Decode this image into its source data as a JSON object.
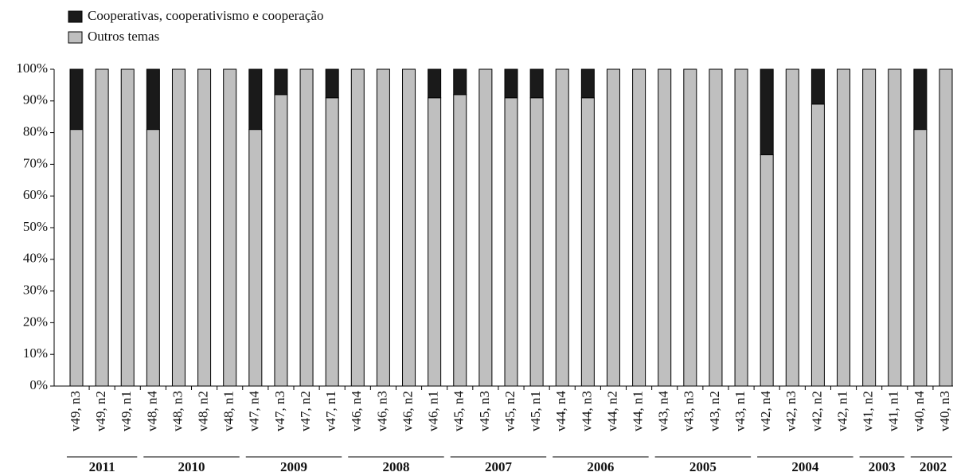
{
  "chart_data": {
    "type": "stacked_bar",
    "groups": [
      {
        "label": "2011",
        "categories": [
          "v49, n3",
          "v49, n2",
          "v49, n1"
        ]
      },
      {
        "label": "2010",
        "categories": [
          "v48, n4",
          "v48, n3",
          "v48, n2",
          "v48, n1"
        ]
      },
      {
        "label": "2009",
        "categories": [
          "v47, n4",
          "v47, n3",
          "v47, n2",
          "v47, n1"
        ]
      },
      {
        "label": "2008",
        "categories": [
          "v46, n4",
          "v46, n3",
          "v46, n2",
          "v46, n1"
        ]
      },
      {
        "label": "2007",
        "categories": [
          "v45, n4",
          "v45, n3",
          "v45, n2",
          "v45, n1"
        ]
      },
      {
        "label": "2006",
        "categories": [
          "v44, n4",
          "v44, n3",
          "v44, n2",
          "v44, n1"
        ]
      },
      {
        "label": "2005",
        "categories": [
          "v43, n4",
          "v43, n3",
          "v43, n2",
          "v43, n1"
        ]
      },
      {
        "label": "2004",
        "categories": [
          "v42, n4",
          "v42, n3",
          "v42, n2",
          "v42, n1"
        ]
      },
      {
        "label": "2003",
        "categories": [
          "v41, n2",
          "v41, n1"
        ]
      },
      {
        "label": "2002",
        "categories": [
          "v40, n4",
          "v40, n3"
        ]
      }
    ],
    "series": [
      {
        "name": "Outros temas",
        "color": "#bfbfbf",
        "values": [
          81,
          100,
          100,
          81,
          100,
          100,
          100,
          81,
          92,
          100,
          91,
          100,
          100,
          100,
          91,
          92,
          100,
          91,
          91,
          100,
          91,
          100,
          100,
          100,
          100,
          100,
          100,
          73,
          100,
          89,
          100,
          100,
          100,
          81,
          100
        ]
      },
      {
        "name": "Cooperativas, cooperativismo e cooperação",
        "color": "#1a1a1a",
        "values": [
          19,
          0,
          0,
          19,
          0,
          0,
          0,
          19,
          8,
          0,
          9,
          0,
          0,
          0,
          9,
          8,
          0,
          9,
          9,
          0,
          9,
          0,
          0,
          0,
          0,
          0,
          0,
          27,
          0,
          11,
          0,
          0,
          0,
          19,
          0
        ]
      }
    ],
    "ylim": [
      0,
      100
    ],
    "yticks": [
      {
        "value": 0,
        "label": "0%"
      },
      {
        "value": 10,
        "label": "10%"
      },
      {
        "value": 20,
        "label": "20%"
      },
      {
        "value": 30,
        "label": "30%"
      },
      {
        "value": 40,
        "label": "40%"
      },
      {
        "value": 50,
        "label": "50%"
      },
      {
        "value": 60,
        "label": "60%"
      },
      {
        "value": 70,
        "label": "70%"
      },
      {
        "value": 80,
        "label": "80%"
      },
      {
        "value": 90,
        "label": "90%"
      },
      {
        "value": 100,
        "label": "100%"
      }
    ],
    "legend": "top-left"
  }
}
